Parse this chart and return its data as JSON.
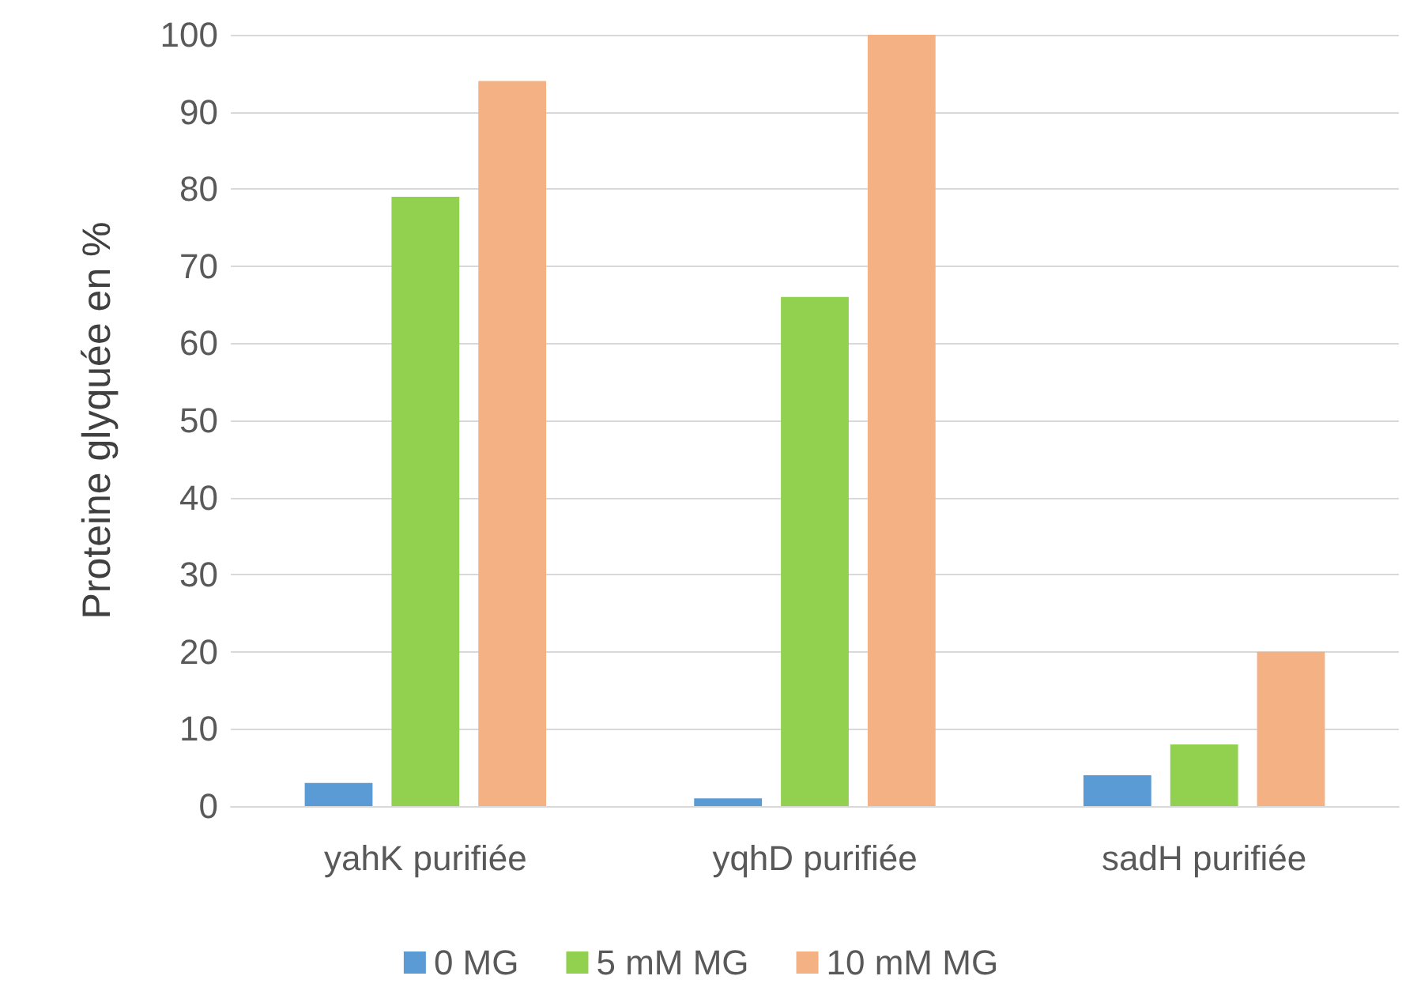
{
  "chart_data": {
    "type": "bar",
    "ylabel": "Proteine glyquée en %",
    "categories": [
      "yahK purifiée",
      "yqhD purifiée",
      "sadH purifiée"
    ],
    "series": [
      {
        "name": "0 MG",
        "color": "#5b9bd5",
        "values": [
          3,
          1,
          4
        ]
      },
      {
        "name": "5 mM MG",
        "color": "#92d050",
        "values": [
          79,
          66,
          8
        ]
      },
      {
        "name": "10 mM MG",
        "color": "#f4b183",
        "values": [
          94,
          100,
          20
        ]
      }
    ],
    "ylim": [
      0,
      100
    ],
    "yticks": [
      0,
      10,
      20,
      30,
      40,
      50,
      60,
      70,
      80,
      90,
      100
    ],
    "grid": "y",
    "legend": "bottom"
  }
}
